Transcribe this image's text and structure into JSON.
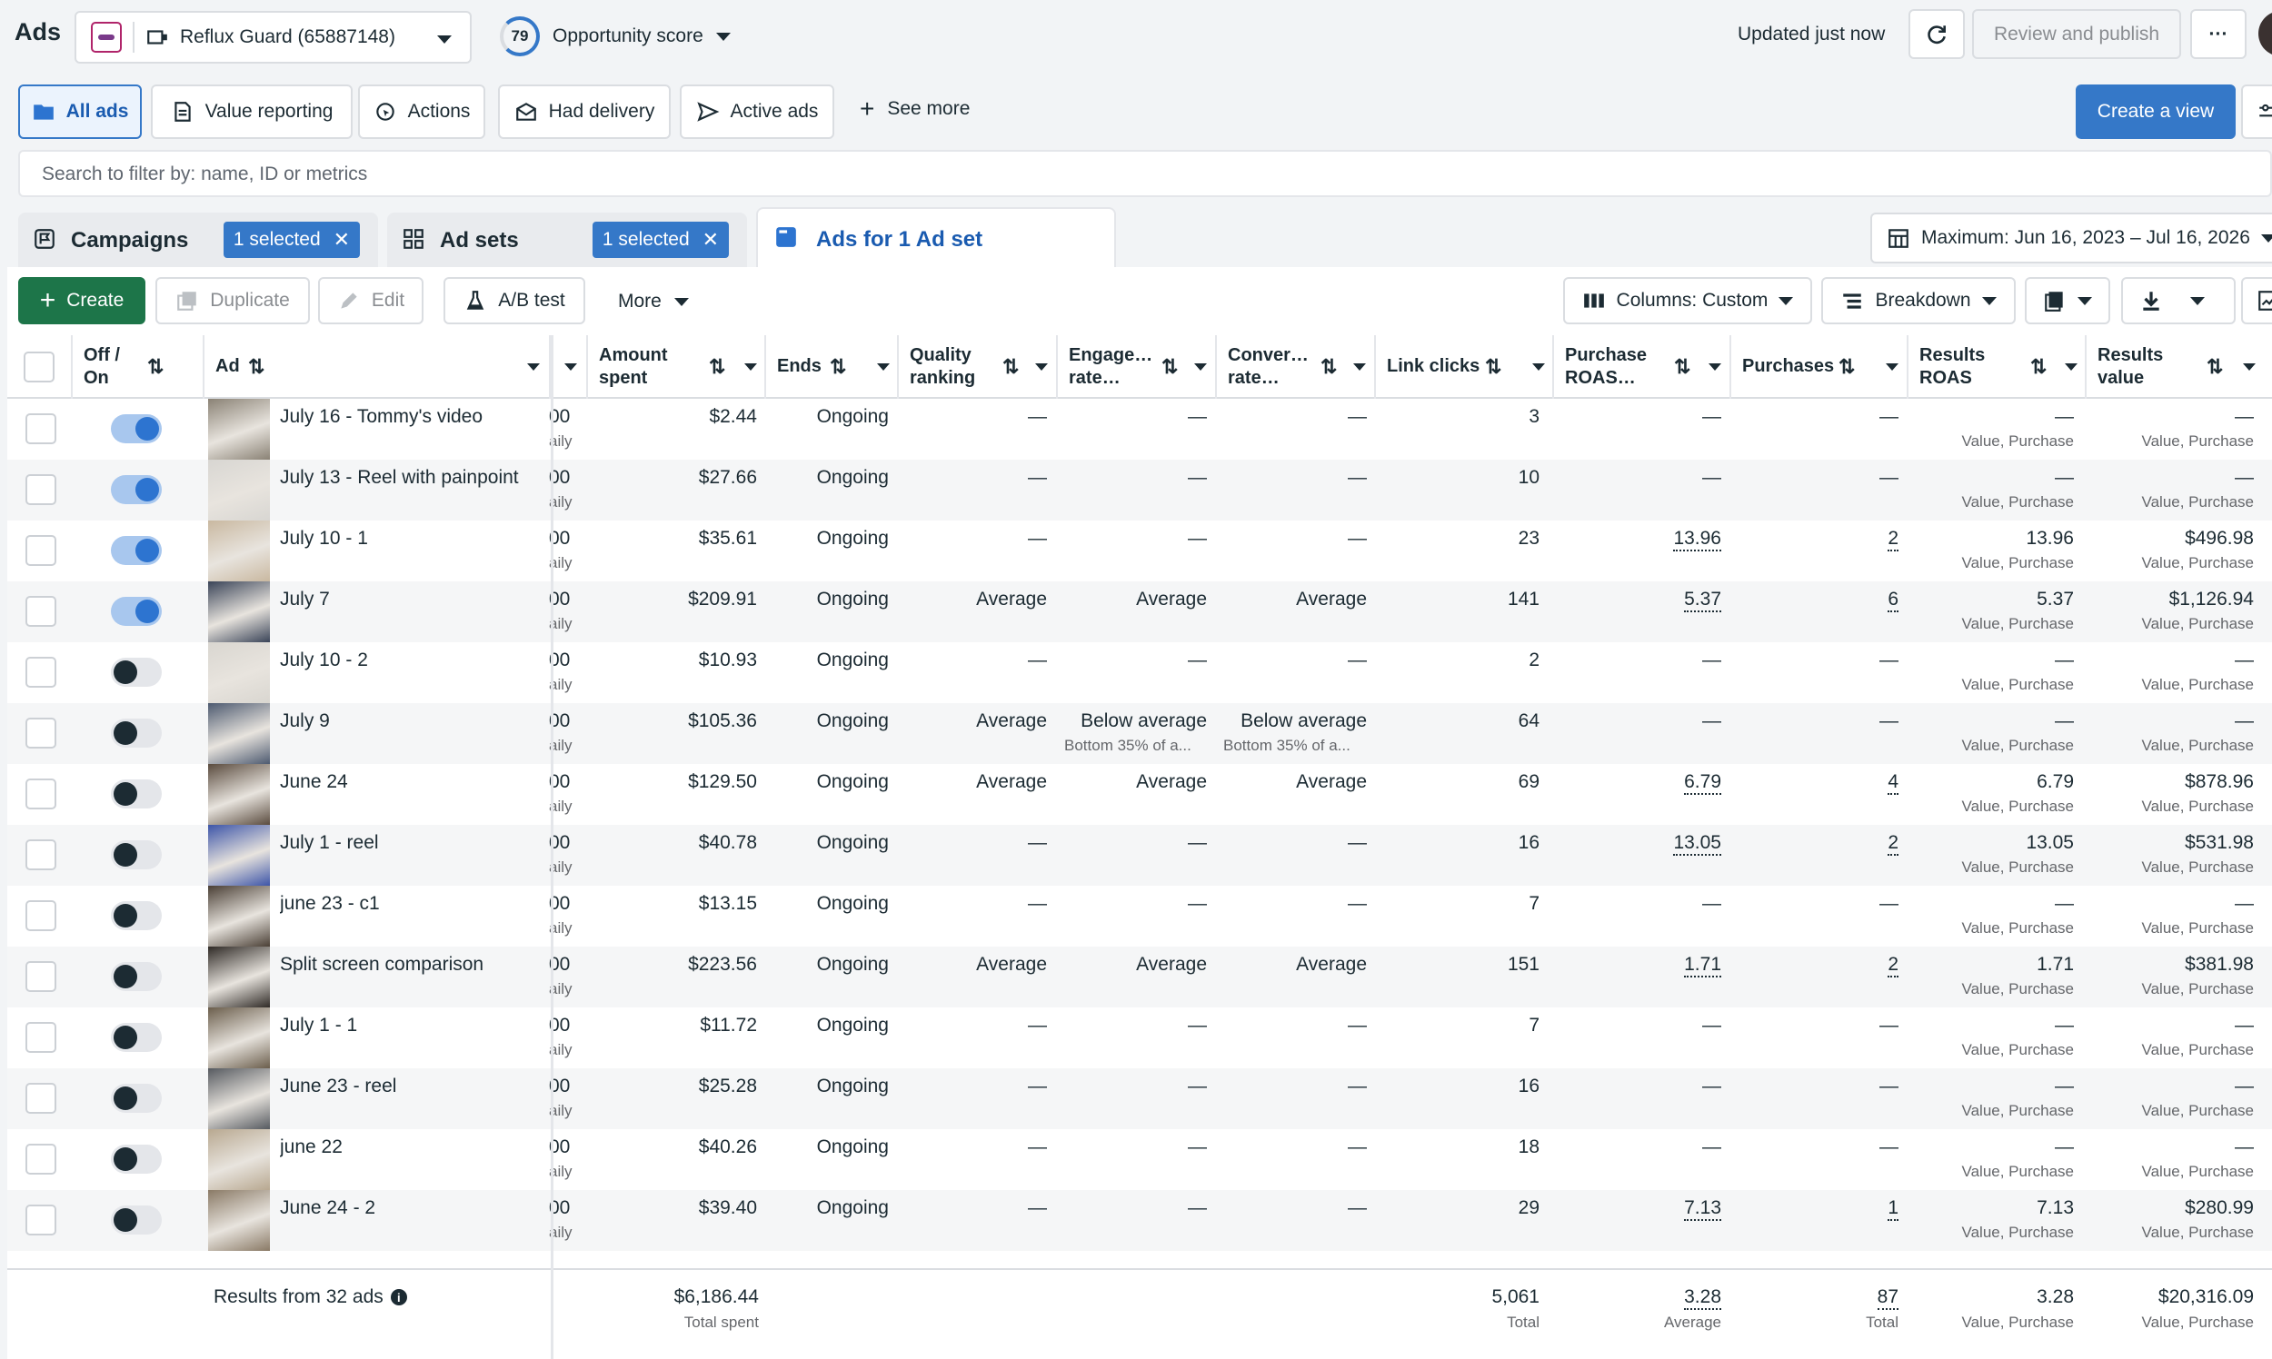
{
  "topbar": {
    "title": "Ads",
    "account": "Reflux Guard (65887148)",
    "score_value": "79",
    "score_label": "Opportunity score",
    "updated": "Updated just now",
    "review_publish": "Review and publish",
    "more": "···"
  },
  "filters": {
    "all_ads": "All ads",
    "value_reporting": "Value reporting",
    "actions": "Actions",
    "had_delivery": "Had delivery",
    "active_ads": "Active ads",
    "see_more": "See more",
    "create_view": "Create a view"
  },
  "search": {
    "placeholder": "Search to filter by: name, ID or metrics"
  },
  "levels": {
    "campaigns": "Campaigns",
    "campaigns_selected": "1 selected",
    "adsets": "Ad sets",
    "adsets_selected": "1 selected",
    "ads": "Ads for 1 Ad set",
    "date_range": "Maximum: Jun 16, 2023 – Jul 16, 2026"
  },
  "toolbar": {
    "create": "Create",
    "duplicate": "Duplicate",
    "edit": "Edit",
    "ab_test": "A/B test",
    "more": "More",
    "columns": "Columns: Custom",
    "breakdown": "Breakdown"
  },
  "columns": {
    "offon_1": "Off /",
    "offon_2": "On",
    "ad": "Ad",
    "amount_1": "Amount",
    "amount_2": "spent",
    "ends": "Ends",
    "quality_1": "Quality",
    "quality_2": "ranking",
    "engage_1": "Engage…",
    "engage_2": "rate…",
    "conver_1": "Conver…",
    "conver_2": "rate…",
    "link_clicks": "Link clicks",
    "proas_1": "Purchase",
    "proas_2": "ROAS…",
    "purchases": "Purchases",
    "rroas_1": "Results",
    "rroas_2": "ROAS",
    "rvalue_1": "Results",
    "rvalue_2": "value"
  },
  "labels": {
    "budget_frag": "00",
    "budget_sub": "aily",
    "value_purchase": "Value, Purchase",
    "dash": "—"
  },
  "rows": [
    {
      "on": true,
      "name": "July 16 - Tommy's video",
      "spent": "$2.44",
      "ends": "Ongoing",
      "quality": "—",
      "engage": "—",
      "conver": "—",
      "engage_sub": "",
      "conver_sub": "",
      "clicks": "3",
      "proas": "—",
      "purchases": "—",
      "rroas": "—",
      "rvalue": "—"
    },
    {
      "on": true,
      "name": "July 13 - Reel with painpoint",
      "spent": "$27.66",
      "ends": "Ongoing",
      "quality": "—",
      "engage": "—",
      "conver": "—",
      "engage_sub": "",
      "conver_sub": "",
      "clicks": "10",
      "proas": "—",
      "purchases": "—",
      "rroas": "—",
      "rvalue": "—"
    },
    {
      "on": true,
      "name": "July 10 - 1",
      "spent": "$35.61",
      "ends": "Ongoing",
      "quality": "—",
      "engage": "—",
      "conver": "—",
      "engage_sub": "",
      "conver_sub": "",
      "clicks": "23",
      "proas": "13.96",
      "purchases": "2",
      "rroas": "13.96",
      "rvalue": "$496.98"
    },
    {
      "on": true,
      "name": "July 7",
      "spent": "$209.91",
      "ends": "Ongoing",
      "quality": "Average",
      "engage": "Average",
      "conver": "Average",
      "engage_sub": "",
      "conver_sub": "",
      "clicks": "141",
      "proas": "5.37",
      "purchases": "6",
      "rroas": "5.37",
      "rvalue": "$1,126.94"
    },
    {
      "on": false,
      "name": "July 10 - 2",
      "spent": "$10.93",
      "ends": "Ongoing",
      "quality": "—",
      "engage": "—",
      "conver": "—",
      "engage_sub": "",
      "conver_sub": "",
      "clicks": "2",
      "proas": "—",
      "purchases": "—",
      "rroas": "—",
      "rvalue": "—"
    },
    {
      "on": false,
      "name": "July 9",
      "spent": "$105.36",
      "ends": "Ongoing",
      "quality": "Average",
      "engage": "Below average",
      "conver": "Below average",
      "engage_sub": "Bottom 35% of a...",
      "conver_sub": "Bottom 35% of a...",
      "clicks": "64",
      "proas": "—",
      "purchases": "—",
      "rroas": "—",
      "rvalue": "—"
    },
    {
      "on": false,
      "name": "June 24",
      "spent": "$129.50",
      "ends": "Ongoing",
      "quality": "Average",
      "engage": "Average",
      "conver": "Average",
      "engage_sub": "",
      "conver_sub": "",
      "clicks": "69",
      "proas": "6.79",
      "purchases": "4",
      "rroas": "6.79",
      "rvalue": "$878.96"
    },
    {
      "on": false,
      "name": "July 1 - reel",
      "spent": "$40.78",
      "ends": "Ongoing",
      "quality": "—",
      "engage": "—",
      "conver": "—",
      "engage_sub": "",
      "conver_sub": "",
      "clicks": "16",
      "proas": "13.05",
      "purchases": "2",
      "rroas": "13.05",
      "rvalue": "$531.98"
    },
    {
      "on": false,
      "name": "june 23 - c1",
      "spent": "$13.15",
      "ends": "Ongoing",
      "quality": "—",
      "engage": "—",
      "conver": "—",
      "engage_sub": "",
      "conver_sub": "",
      "clicks": "7",
      "proas": "—",
      "purchases": "—",
      "rroas": "—",
      "rvalue": "—"
    },
    {
      "on": false,
      "name": "Split screen comparison",
      "spent": "$223.56",
      "ends": "Ongoing",
      "quality": "Average",
      "engage": "Average",
      "conver": "Average",
      "engage_sub": "",
      "conver_sub": "",
      "clicks": "151",
      "proas": "1.71",
      "purchases": "2",
      "rroas": "1.71",
      "rvalue": "$381.98"
    },
    {
      "on": false,
      "name": "July 1 - 1",
      "spent": "$11.72",
      "ends": "Ongoing",
      "quality": "—",
      "engage": "—",
      "conver": "—",
      "engage_sub": "",
      "conver_sub": "",
      "clicks": "7",
      "proas": "—",
      "purchases": "—",
      "rroas": "—",
      "rvalue": "—"
    },
    {
      "on": false,
      "name": "June 23 - reel",
      "spent": "$25.28",
      "ends": "Ongoing",
      "quality": "—",
      "engage": "—",
      "conver": "—",
      "engage_sub": "",
      "conver_sub": "",
      "clicks": "16",
      "proas": "—",
      "purchases": "—",
      "rroas": "—",
      "rvalue": "—"
    },
    {
      "on": false,
      "name": "june 22",
      "spent": "$40.26",
      "ends": "Ongoing",
      "quality": "—",
      "engage": "—",
      "conver": "—",
      "engage_sub": "",
      "conver_sub": "",
      "clicks": "18",
      "proas": "—",
      "purchases": "—",
      "rroas": "—",
      "rvalue": "—"
    },
    {
      "on": false,
      "name": "June 24 - 2",
      "spent": "$39.40",
      "ends": "Ongoing",
      "quality": "—",
      "engage": "—",
      "conver": "—",
      "engage_sub": "",
      "conver_sub": "",
      "clicks": "29",
      "proas": "7.13",
      "purchases": "1",
      "rroas": "7.13",
      "rvalue": "$280.99"
    }
  ],
  "footer": {
    "results": "Results from 32 ads",
    "spent": "$6,186.44",
    "spent_sub": "Total spent",
    "clicks": "5,061",
    "clicks_sub": "Total",
    "proas": "3.28",
    "proas_sub": "Average",
    "purchases": "87",
    "purchases_sub": "Total",
    "rroas": "3.28",
    "rroas_sub": "Value, Purchase",
    "rvalue": "$20,316.09",
    "rvalue_sub": "Value, Purchase"
  },
  "colors": {
    "accent": "#3578c8",
    "toggle_on": "#2d74d0",
    "text": "#1c2b33"
  }
}
